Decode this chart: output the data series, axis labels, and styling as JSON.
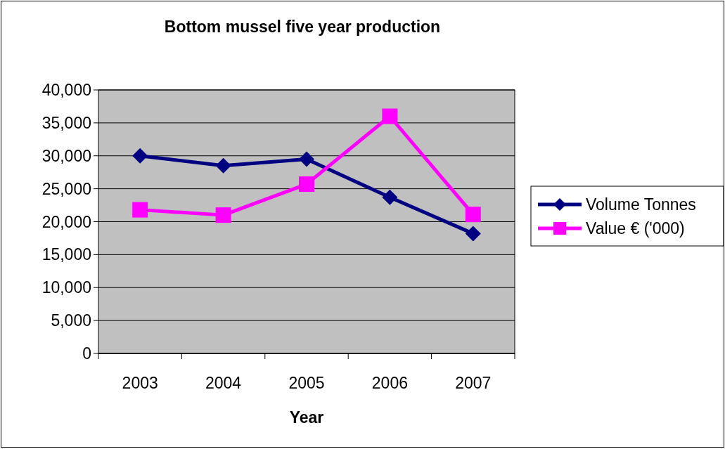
{
  "chart_data": {
    "type": "line",
    "title": "Bottom mussel five year production",
    "xlabel": "Year",
    "categories": [
      "2003",
      "2004",
      "2005",
      "2006",
      "2007"
    ],
    "series": [
      {
        "name": "Volume Tonnes",
        "color": "#000080",
        "marker": "diamond",
        "values": [
          30000,
          28500,
          29500,
          23700,
          18200
        ]
      },
      {
        "name": "Value € ('000)",
        "color": "#ff00ff",
        "marker": "square",
        "values": [
          21800,
          21000,
          25700,
          36000,
          21100
        ]
      }
    ],
    "ylim": [
      0,
      40000
    ],
    "yticks": [
      {
        "value": 0,
        "label": "0"
      },
      {
        "value": 5000,
        "label": "5,000"
      },
      {
        "value": 10000,
        "label": "10,000"
      },
      {
        "value": 15000,
        "label": "15,000"
      },
      {
        "value": 20000,
        "label": "20,000"
      },
      {
        "value": 25000,
        "label": "25,000"
      },
      {
        "value": 30000,
        "label": "30,000"
      },
      {
        "value": 35000,
        "label": "35,000"
      },
      {
        "value": 40000,
        "label": "40,000"
      }
    ],
    "grid": "y",
    "legend": "right"
  }
}
